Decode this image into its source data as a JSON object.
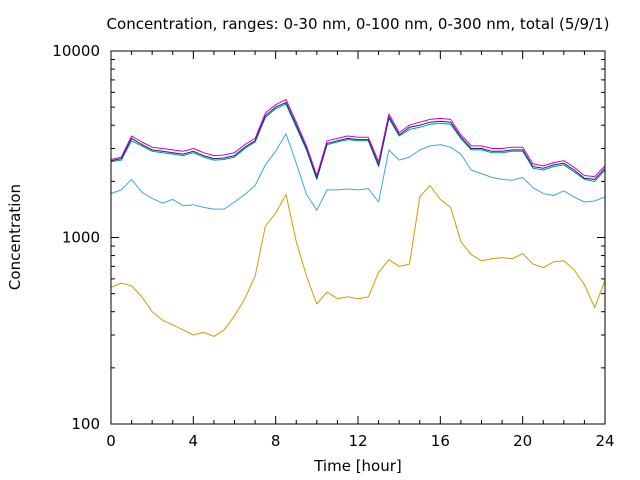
{
  "chart_data": {
    "type": "line",
    "title": "Concentration, ranges: 0-30 nm, 0-100 nm, 0-300 nm, total (5/9/1)",
    "xlabel": "Time [hour]",
    "ylabel": "Concentration",
    "xlim": [
      0,
      24
    ],
    "ylim": [
      100,
      10000
    ],
    "yscale": "log",
    "x_ticks": [
      "0",
      "4",
      "8",
      "12",
      "16",
      "20",
      "24"
    ],
    "y_ticks": [
      "100",
      "1000",
      "10000"
    ],
    "grid": false,
    "legend": "none",
    "x": [
      0,
      0.5,
      1,
      1.5,
      2,
      2.5,
      3,
      3.5,
      4,
      4.5,
      5,
      5.5,
      6,
      6.5,
      7,
      7.5,
      8,
      8.5,
      9,
      9.5,
      10,
      10.5,
      11,
      11.5,
      12,
      12.5,
      13,
      13.5,
      14,
      14.5,
      15,
      15.5,
      16,
      16.5,
      17,
      17.5,
      18,
      18.5,
      19,
      19.5,
      20,
      20.5,
      21,
      21.5,
      22,
      22.5,
      23,
      23.5,
      24
    ],
    "series": [
      {
        "color": "#c8a000",
        "values": [
          540,
          570,
          550,
          480,
          400,
          360,
          340,
          320,
          300,
          310,
          295,
          320,
          380,
          470,
          620,
          1150,
          1350,
          1700,
          950,
          620,
          440,
          510,
          470,
          480,
          470,
          480,
          650,
          760,
          700,
          720,
          1650,
          1900,
          1600,
          1450,
          950,
          810,
          750,
          770,
          780,
          770,
          820,
          720,
          690,
          740,
          750,
          670,
          560,
          420,
          590
        ]
      },
      {
        "color": "#41a7d2",
        "values": [
          1720,
          1800,
          2050,
          1750,
          1620,
          1530,
          1600,
          1480,
          1500,
          1450,
          1420,
          1420,
          1550,
          1700,
          1900,
          2450,
          2900,
          3600,
          2500,
          1700,
          1400,
          1800,
          1800,
          1820,
          1800,
          1830,
          1550,
          2950,
          2600,
          2700,
          2950,
          3100,
          3150,
          3050,
          2800,
          2300,
          2200,
          2100,
          2050,
          2030,
          2100,
          1850,
          1720,
          1680,
          1780,
          1650,
          1550,
          1570,
          1650
        ]
      },
      {
        "color": "#009e73",
        "values": [
          2550,
          2600,
          3300,
          3100,
          2900,
          2850,
          2800,
          2750,
          2850,
          2700,
          2600,
          2620,
          2700,
          3000,
          3250,
          4400,
          4900,
          5200,
          3900,
          2950,
          2050,
          3150,
          3250,
          3350,
          3300,
          3300,
          2400,
          4350,
          3500,
          3800,
          3900,
          4050,
          4100,
          4050,
          3400,
          2950,
          2950,
          2850,
          2850,
          2900,
          2900,
          2350,
          2300,
          2400,
          2450,
          2250,
          2050,
          2000,
          2300
        ]
      },
      {
        "color": "#1a237e",
        "values": [
          2580,
          2650,
          3400,
          3150,
          2950,
          2900,
          2850,
          2800,
          2900,
          2750,
          2650,
          2670,
          2750,
          3050,
          3300,
          4500,
          5000,
          5300,
          4000,
          3000,
          2080,
          3200,
          3300,
          3400,
          3350,
          3350,
          2450,
          4450,
          3550,
          3900,
          4000,
          4150,
          4200,
          4150,
          3450,
          3000,
          3000,
          2900,
          2900,
          2950,
          2950,
          2400,
          2350,
          2450,
          2500,
          2300,
          2080,
          2050,
          2350
        ]
      },
      {
        "color": "#cc00cc",
        "values": [
          2620,
          2700,
          3500,
          3250,
          3050,
          3000,
          2950,
          2900,
          3000,
          2850,
          2750,
          2770,
          2850,
          3150,
          3400,
          4650,
          5150,
          5500,
          4150,
          3100,
          2150,
          3300,
          3400,
          3500,
          3450,
          3450,
          2550,
          4600,
          3650,
          4000,
          4150,
          4300,
          4350,
          4300,
          3550,
          3100,
          3100,
          3000,
          3000,
          3050,
          3050,
          2480,
          2420,
          2520,
          2580,
          2380,
          2150,
          2120,
          2420
        ]
      }
    ]
  }
}
